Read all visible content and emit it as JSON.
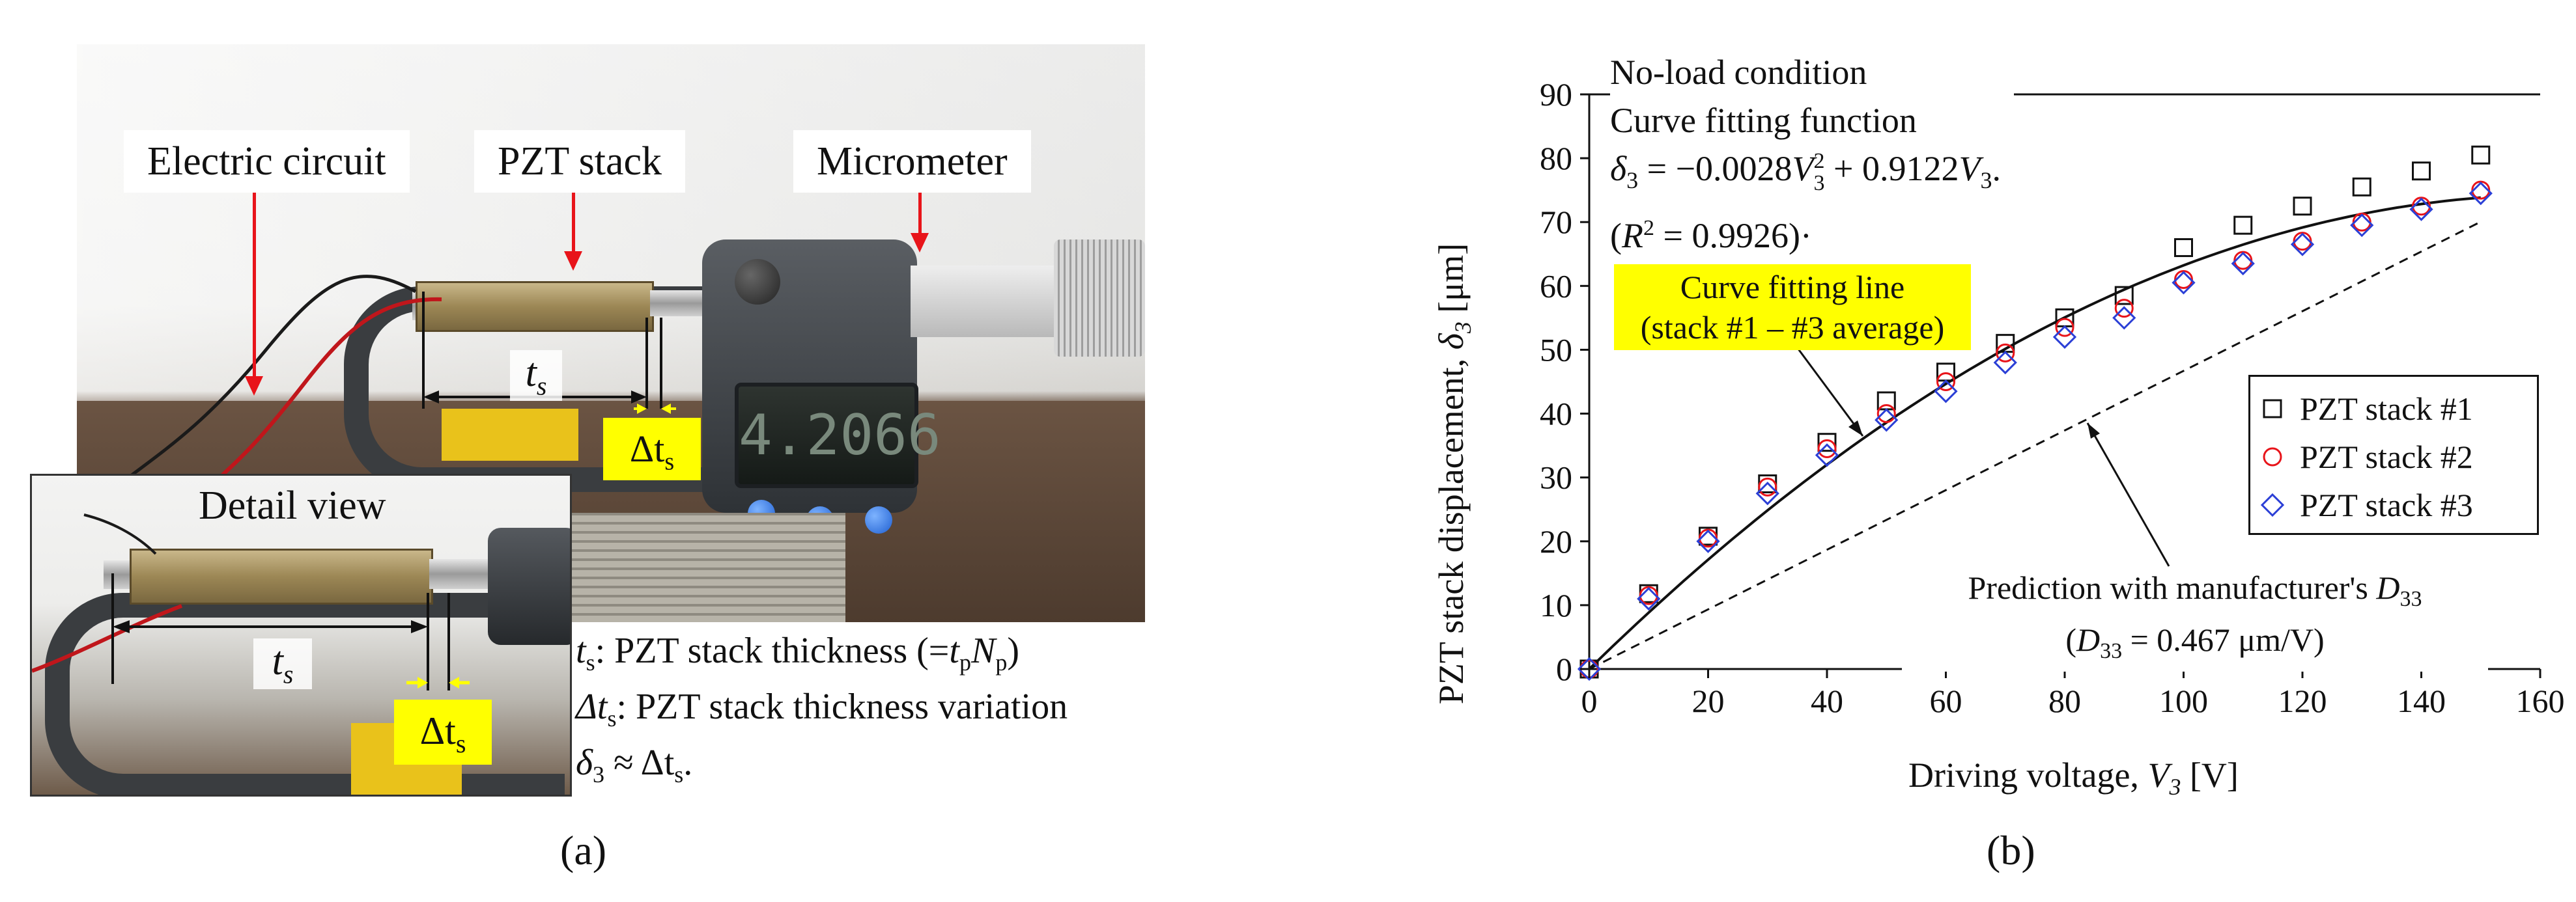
{
  "panel_a": {
    "caption": "(a)",
    "labels": {
      "electric_circuit": "Electric circuit",
      "pzt_stack": "PZT stack",
      "micrometer": "Micrometer",
      "detail_view": "Detail view"
    },
    "dim_ts": "t",
    "dim_ts_sub": "s",
    "dim_dts": "Δt",
    "dim_dts_sub": "s",
    "lcd_reading": "4.2066",
    "notes": {
      "line1_sym": "t",
      "line1_sub": "s",
      "line1_text": ": PZT stack thickness (=",
      "line1_tp": "t",
      "line1_tp_sub": "p",
      "line1_np": "N",
      "line1_np_sub": "p",
      "line1_end": ")",
      "line2_sym": "Δt",
      "line2_sub": "s",
      "line2_text": ": PZT stack thickness variation",
      "line3_sym": "δ",
      "line3_sub": "3",
      "line3_text": " ≈ Δt",
      "line3_sub2": "s",
      "line3_end": "."
    }
  },
  "panel_b": {
    "caption": "(b)",
    "annot": {
      "no_load": "No-load condition",
      "fit_fn": "Curve fitting function",
      "eq_lhs": "δ",
      "eq_lhs_sub": "3",
      "eq_mid": " = −0.0028",
      "eq_v": "V",
      "eq_v_sub": "3",
      "eq_v_sup": "2",
      "eq_plus": " + 0.9122",
      "eq_v2": "V",
      "eq_v2_sub": "3",
      "eq_end": ".",
      "r2_open": "(",
      "r2_r": "R",
      "r2_sup": "2",
      "r2_rest": " = 0.9926)·",
      "fit_line_1": "Curve fitting line",
      "fit_line_2": "(stack #1 – #3 average)",
      "pred_1": "Prediction with manufacturer's ",
      "pred_d": "D",
      "pred_d_sub": "33",
      "pred_2_open": "(",
      "pred_2_d": "D",
      "pred_2_sub": "33",
      "pred_2_rest": " = 0.467 μm/V)"
    }
  },
  "chart_data": {
    "type": "scatter",
    "title": "",
    "xlabel": "Driving voltage, V3 [V]",
    "xlabel_parts": {
      "pre": "Driving voltage, ",
      "v": "V",
      "sub": "3",
      "post": " [V]"
    },
    "ylabel": "PZT stack displacement, δ3 [μm]",
    "ylabel_parts": {
      "pre": "PZT stack displacement, ",
      "d": "δ",
      "sub": "3",
      "post": " [μm]"
    },
    "xlim": [
      0,
      160
    ],
    "ylim": [
      0,
      90
    ],
    "xticks": [
      0,
      20,
      40,
      60,
      80,
      100,
      120,
      140,
      160
    ],
    "yticks": [
      0,
      10,
      20,
      30,
      40,
      50,
      60,
      70,
      80,
      90
    ],
    "grid": false,
    "legend_position": "right",
    "series": [
      {
        "name": "PZT stack #1",
        "marker": "square",
        "color": "#111111",
        "x": [
          0,
          10,
          20,
          30,
          40,
          50,
          60,
          70,
          80,
          90,
          100,
          110,
          120,
          130,
          140,
          150
        ],
        "y": [
          0,
          11.8,
          20.8,
          29,
          35.5,
          42,
          46.5,
          51,
          55,
          58.5,
          66,
          69.5,
          72.5,
          75.5,
          78,
          80.5
        ]
      },
      {
        "name": "PZT stack #2",
        "marker": "circle",
        "color": "#e8141a",
        "x": [
          0,
          10,
          20,
          30,
          40,
          50,
          60,
          70,
          80,
          90,
          100,
          110,
          120,
          130,
          140,
          150
        ],
        "y": [
          0,
          11.5,
          20.5,
          28.5,
          34.5,
          40,
          45,
          49.5,
          53.5,
          56.5,
          61,
          64,
          67,
          70,
          72.5,
          75
        ]
      },
      {
        "name": "PZT stack #3",
        "marker": "diamond",
        "color": "#2b3fd6",
        "x": [
          0,
          10,
          20,
          30,
          40,
          50,
          60,
          70,
          80,
          90,
          100,
          110,
          120,
          130,
          140,
          150
        ],
        "y": [
          0,
          11,
          20,
          27.5,
          33.5,
          39,
          43.5,
          48,
          52,
          55,
          60.5,
          63.5,
          66.5,
          69.5,
          72,
          74.5
        ]
      }
    ],
    "fit_curve": {
      "label": "Curve fitting line",
      "a": -0.0028,
      "b": 0.9122,
      "x_range": [
        0,
        150
      ],
      "style": "solid"
    },
    "prediction_line": {
      "slope": 0.467,
      "x_range": [
        0,
        150
      ],
      "style": "dashed"
    }
  }
}
